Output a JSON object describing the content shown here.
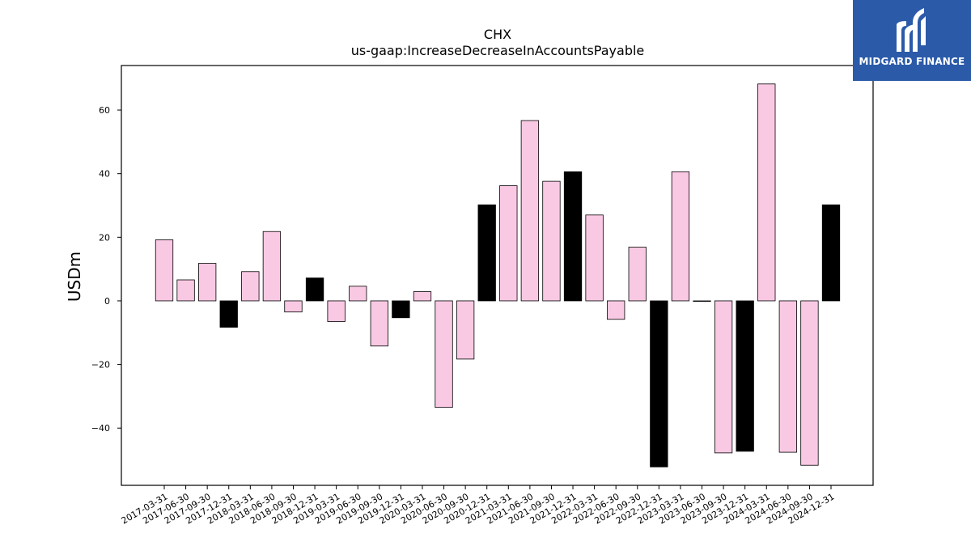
{
  "brand": {
    "name": "MIDGARD FINANCE",
    "logo_icon": "midgard-logo-icon",
    "background_color": "#2b5aa8"
  },
  "chart_data": {
    "type": "bar",
    "title": "CHX",
    "subtitle": "us-gaap:IncreaseDecreaseInAccountsPayable",
    "xlabel": "",
    "ylabel": "USDm",
    "ylim": [
      -58,
      74
    ],
    "yticks": [
      60,
      40,
      20,
      0,
      -20,
      -40
    ],
    "ytick_labels": [
      "60",
      "40",
      "20",
      "0",
      "−20",
      "−40"
    ],
    "grid": false,
    "colors": {
      "quarterly": "#f9c9e3",
      "q4": "#000000",
      "edge": "#000000"
    },
    "categories": [
      "2017-03-31",
      "2017-06-30",
      "2017-09-30",
      "2017-12-31",
      "2018-03-31",
      "2018-06-30",
      "2018-09-30",
      "2018-12-31",
      "2019-03-31",
      "2019-06-30",
      "2019-09-30",
      "2019-12-31",
      "2020-03-31",
      "2020-06-30",
      "2020-09-30",
      "2020-12-31",
      "2021-03-31",
      "2021-06-30",
      "2021-09-30",
      "2021-12-31",
      "2022-03-31",
      "2022-06-30",
      "2022-09-30",
      "2022-12-31",
      "2023-03-31",
      "2023-06-30",
      "2023-09-30",
      "2023-12-31",
      "2024-03-31",
      "2024-06-30",
      "2024-09-30",
      "2024-12-31"
    ],
    "values": [
      19.2,
      6.6,
      11.8,
      -8.3,
      9.2,
      21.8,
      -3.5,
      7.2,
      -6.5,
      4.6,
      -14.2,
      -5.3,
      2.9,
      -33.5,
      -18.3,
      30.2,
      36.2,
      56.7,
      37.6,
      40.6,
      27.0,
      -5.8,
      16.9,
      -52.2,
      40.6,
      0.0,
      -47.8,
      -47.3,
      68.2,
      -47.6,
      -51.7,
      30.2
    ],
    "q4_flags": [
      false,
      false,
      false,
      true,
      false,
      false,
      false,
      true,
      false,
      false,
      false,
      true,
      false,
      false,
      false,
      true,
      false,
      false,
      false,
      true,
      false,
      false,
      false,
      true,
      false,
      false,
      false,
      true,
      false,
      false,
      false,
      true
    ]
  }
}
